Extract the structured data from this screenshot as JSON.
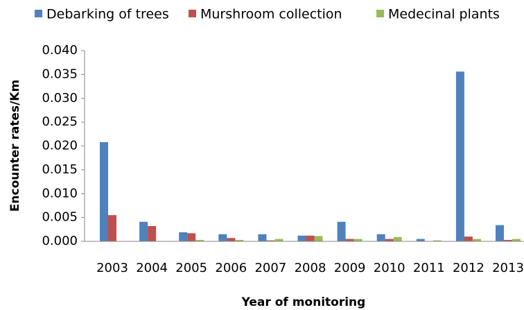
{
  "chart_data": {
    "type": "bar",
    "xlabel": "Year of monitoring",
    "ylabel": "Encounter rates/Km",
    "categories": [
      "2003",
      "2004",
      "2005",
      "2006",
      "2007",
      "2008",
      "2009",
      "2010",
      "2011",
      "2012",
      "2013"
    ],
    "series": [
      {
        "name": "Debarking of trees",
        "color": "#4f81bd",
        "values": [
          0.0208,
          0.0041,
          0.0019,
          0.0015,
          0.0015,
          0.0012,
          0.0041,
          0.0015,
          0.0005,
          0.0356,
          0.0034
        ]
      },
      {
        "name": "Murshroom collection",
        "color": "#c0504d",
        "values": [
          0.0055,
          0.0032,
          0.0017,
          0.0007,
          0.0002,
          0.0012,
          0.0005,
          0.0005,
          0,
          0.001,
          0.0003
        ]
      },
      {
        "name": "Medecinal plants",
        "color": "#9bbb59",
        "values": [
          0,
          0,
          0.0003,
          0.0003,
          0.0005,
          0.0011,
          0.0005,
          0.0009,
          0.0002,
          0.0005,
          0.0005
        ]
      }
    ],
    "ylim": [
      0,
      0.04
    ],
    "yticks": [
      {
        "value": 0,
        "label": "0.000"
      },
      {
        "value": 0.005,
        "label": "0.005"
      },
      {
        "value": 0.01,
        "label": "0.010"
      },
      {
        "value": 0.015,
        "label": "0.015"
      },
      {
        "value": 0.02,
        "label": "0.020"
      },
      {
        "value": 0.025,
        "label": "0.025"
      },
      {
        "value": 0.03,
        "label": "0.030"
      },
      {
        "value": 0.035,
        "label": "0.035"
      },
      {
        "value": 0.04,
        "label": "0.040"
      }
    ],
    "grid": false
  }
}
